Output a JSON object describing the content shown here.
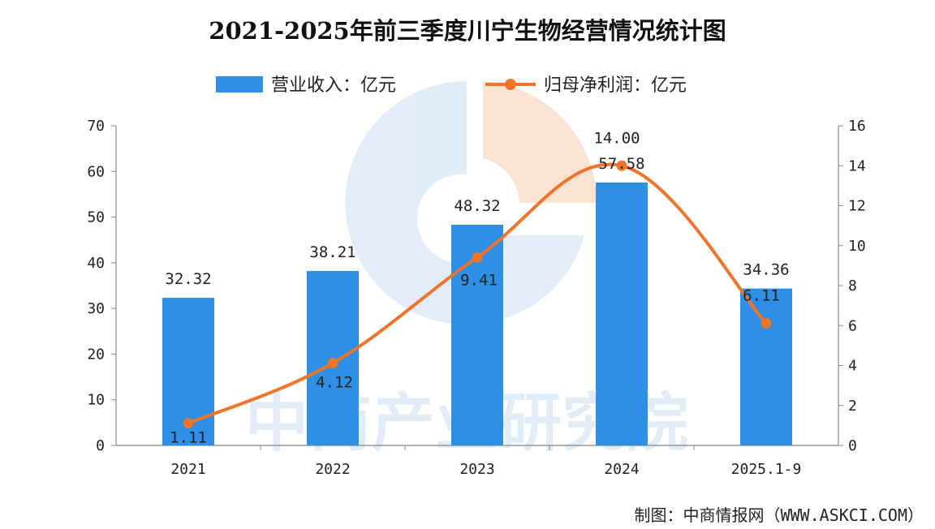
{
  "chart_data": {
    "type": "bar+line",
    "title": "2021-2025年前三季度川宁生物经营情况统计图",
    "categories": [
      "2021",
      "2022",
      "2023",
      "2024",
      "2025.1-9"
    ],
    "series": [
      {
        "name": "营业收入：亿元",
        "type": "bar",
        "axis": "left",
        "color": "#2e8fe6",
        "values": [
          32.32,
          38.21,
          48.32,
          57.58,
          34.36
        ],
        "labels": [
          "32.32",
          "38.21",
          "48.32",
          "57.58",
          "34.36"
        ]
      },
      {
        "name": "归母净利润：亿元",
        "type": "line",
        "axis": "right",
        "color": "#f0742c",
        "values": [
          1.11,
          4.12,
          9.41,
          14.0,
          6.11
        ],
        "labels": [
          "1.11",
          "4.12",
          "9.41",
          "14.00",
          "6.11"
        ]
      }
    ],
    "y_left": {
      "min": 0,
      "max": 70,
      "ticks": [
        "0",
        "10",
        "20",
        "30",
        "40",
        "50",
        "60",
        "70"
      ]
    },
    "y_right": {
      "min": 0,
      "max": 16,
      "ticks": [
        "0",
        "2",
        "4",
        "6",
        "8",
        "10",
        "12",
        "14",
        "16"
      ]
    },
    "legend_position": "top-center",
    "grid": false
  },
  "watermark": "中商产业研究院",
  "source": "制图：中商情报网（WWW.ASKCI.COM）"
}
